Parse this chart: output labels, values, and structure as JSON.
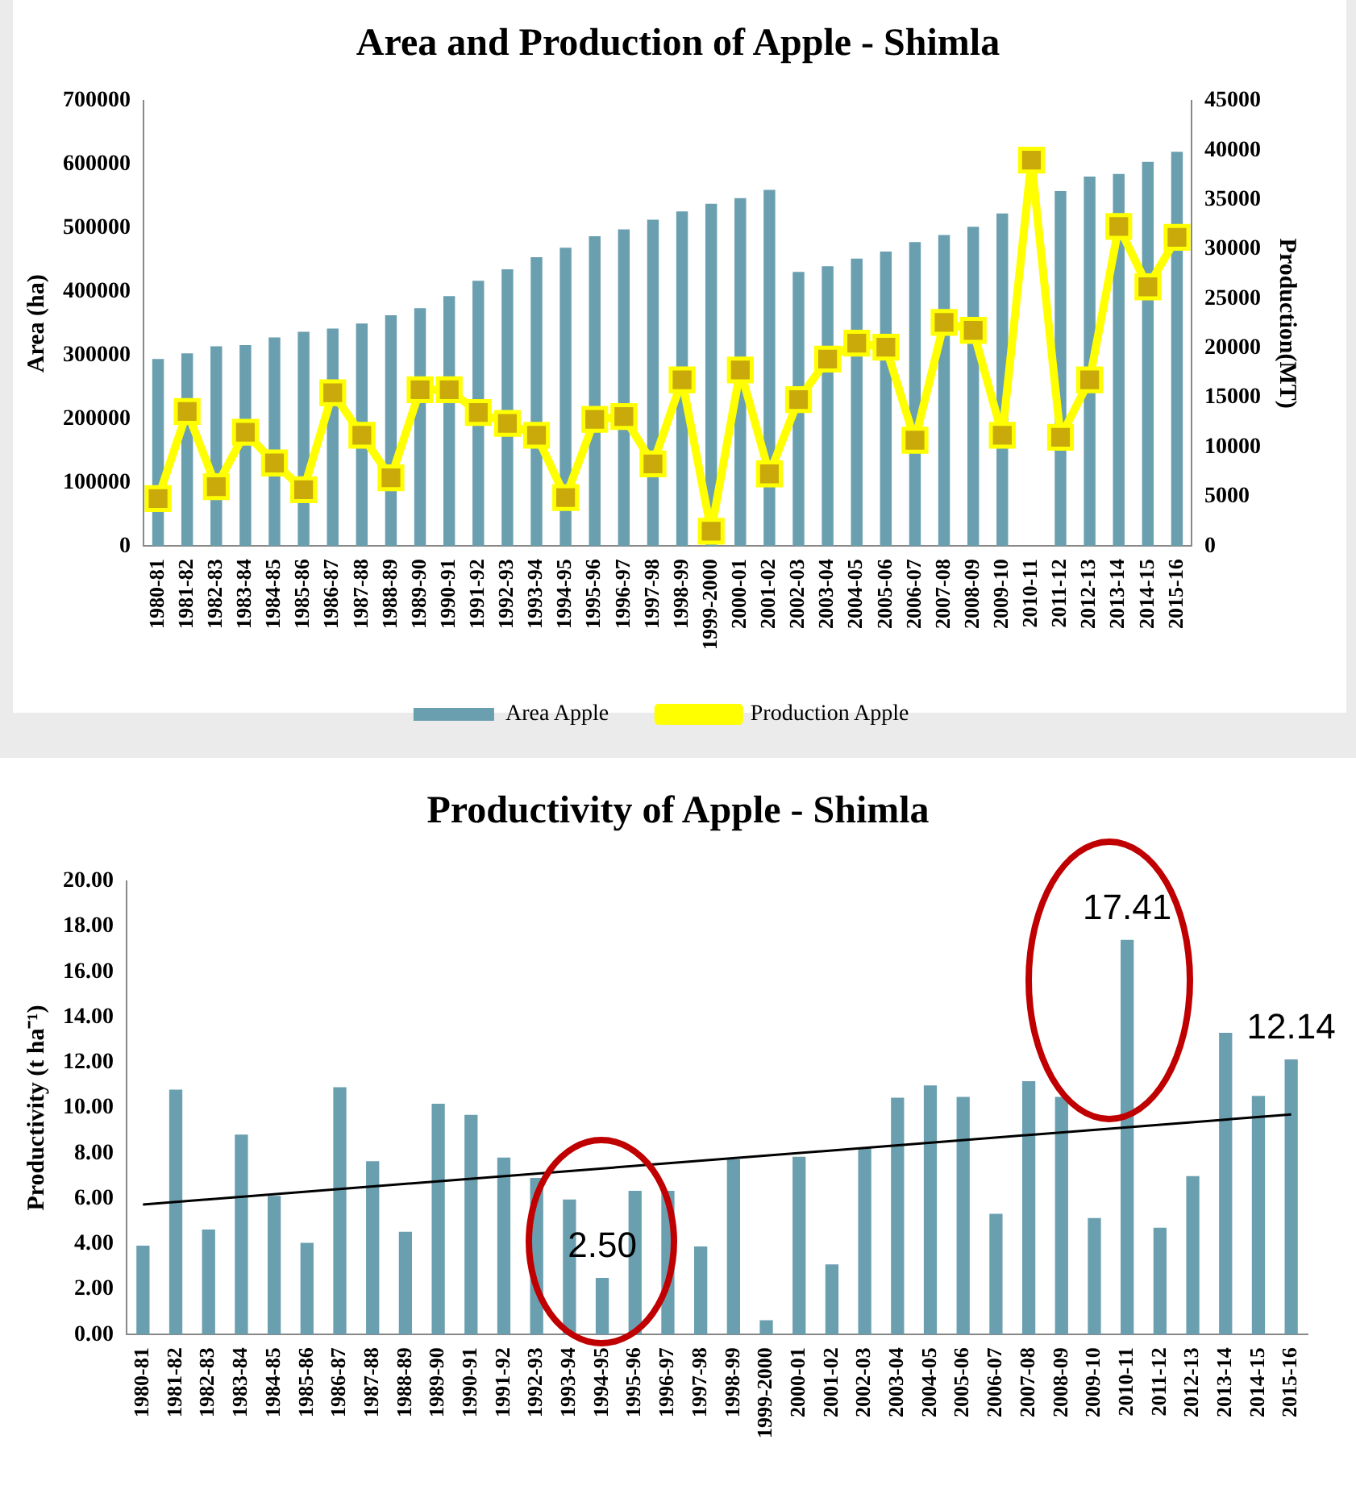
{
  "chart_data": [
    {
      "type": "bar",
      "title": "Area and Production of Apple - Shimla",
      "ylabel": "Area (ha)",
      "y2label": "Production(MT)",
      "categories": [
        "1980-81",
        "1981-82",
        "1982-83",
        "1983-84",
        "1984-85",
        "1985-86",
        "1986-87",
        "1987-88",
        "1988-89",
        "1989-90",
        "1990-91",
        "1991-92",
        "1992-93",
        "1993-94",
        "1994-95",
        "1995-96",
        "1996-97",
        "1997-98",
        "1998-99",
        "1999-2000",
        "2000-01",
        "2001-02",
        "2002-03",
        "2003-04",
        "2004-05",
        "2005-06",
        "2006-07",
        "2007-08",
        "2008-09",
        "2009-10",
        "2010-11",
        "2011-12",
        "2012-13",
        "2013-14",
        "2014-15",
        "2015-16"
      ],
      "series": [
        {
          "name": "Area Apple",
          "color": "#6a9fb0",
          "values": [
            294000,
            303000,
            314000,
            316000,
            328000,
            337000,
            342000,
            350000,
            363000,
            374000,
            393000,
            417000,
            435000,
            454000,
            469000,
            487000,
            498000,
            513000,
            526000,
            538000,
            547000,
            560000,
            431000,
            440000,
            452000,
            463000,
            478000,
            489000,
            502000,
            523000,
            null,
            558000,
            581000,
            585000,
            604000,
            620000
          ]
        },
        {
          "name": "Production Apple",
          "type": "line",
          "axis": "y2",
          "color": "#ffff00",
          "values": [
            4800,
            13600,
            6000,
            11500,
            8400,
            5700,
            15500,
            11200,
            6900,
            15800,
            15800,
            13500,
            12400,
            11200,
            4900,
            12800,
            13100,
            8300,
            16800,
            1500,
            17800,
            7300,
            14800,
            18900,
            20500,
            20100,
            10700,
            22600,
            21800,
            11200,
            39000,
            11000,
            16800,
            32300,
            26200,
            31200
          ]
        }
      ],
      "ylim": [
        0,
        700000
      ],
      "yticks": [
        0,
        100000,
        200000,
        300000,
        400000,
        500000,
        600000,
        700000
      ],
      "y2lim": [
        0,
        45000
      ],
      "y2ticks": [
        0,
        5000,
        10000,
        15000,
        20000,
        25000,
        30000,
        35000,
        40000,
        45000
      ],
      "marker": "square",
      "legend": "bottom",
      "grid": false
    },
    {
      "type": "bar",
      "title": "Productivity of Apple - Shimla",
      "ylabel": "Productivity (t ha⁻¹)",
      "categories": [
        "1980-81",
        "1981-82",
        "1982-83",
        "1983-84",
        "1984-85",
        "1985-86",
        "1986-87",
        "1987-88",
        "1988-89",
        "1989-90",
        "1990-91",
        "1991-92",
        "1992-93",
        "1993-94",
        "1994-95",
        "1995-96",
        "1996-97",
        "1997-98",
        "1998-99",
        "1999-2000",
        "2000-01",
        "2001-02",
        "2002-03",
        "2003-04",
        "2004-05",
        "2005-06",
        "2006-07",
        "2007-08",
        "2008-09",
        "2009-10",
        "2010-11",
        "2011-12",
        "2012-13",
        "2013-14",
        "2014-15",
        "2015-16"
      ],
      "series": [
        {
          "color": "#6a9fb0",
          "values": [
            3.92,
            10.8,
            4.63,
            8.82,
            6.12,
            4.05,
            10.91,
            7.65,
            4.54,
            10.18,
            9.69,
            7.81,
            6.91,
            5.96,
            2.5,
            6.34,
            6.34,
            3.89,
            7.73,
            0.63,
            7.84,
            3.1,
            8.22,
            10.45,
            10.99,
            10.48,
            5.33,
            11.18,
            10.48,
            5.14,
            17.41,
            4.71,
            6.99,
            13.31,
            10.53,
            12.14
          ],
          "value_labels": [
            null,
            null,
            null,
            null,
            null,
            null,
            null,
            null,
            null,
            null,
            null,
            null,
            null,
            null,
            "2.50",
            null,
            null,
            null,
            null,
            null,
            null,
            null,
            null,
            null,
            null,
            null,
            null,
            null,
            null,
            null,
            "17.41",
            null,
            null,
            null,
            null,
            "12.14"
          ]
        },
        {
          "type": "line",
          "color": "#000000",
          "x": [
            "1980-81",
            "2015-16"
          ],
          "values": [
            5.74,
            9.71
          ]
        }
      ],
      "ylim": [
        0,
        20
      ],
      "yticks": [
        {
          "value": 0,
          "label": "0.00"
        },
        {
          "value": 2,
          "label": "2.00"
        },
        {
          "value": 4,
          "label": "4.00"
        },
        {
          "value": 6,
          "label": "6.00"
        },
        {
          "value": 8,
          "label": "8.00"
        },
        {
          "value": 10,
          "label": "10.00"
        },
        {
          "value": 12,
          "label": "12.00"
        },
        {
          "value": 14,
          "label": "14.00"
        },
        {
          "value": 16,
          "label": "16.00"
        },
        {
          "value": 18,
          "label": "18.00"
        },
        {
          "value": 20,
          "label": "20.00"
        }
      ],
      "grid": false
    }
  ]
}
